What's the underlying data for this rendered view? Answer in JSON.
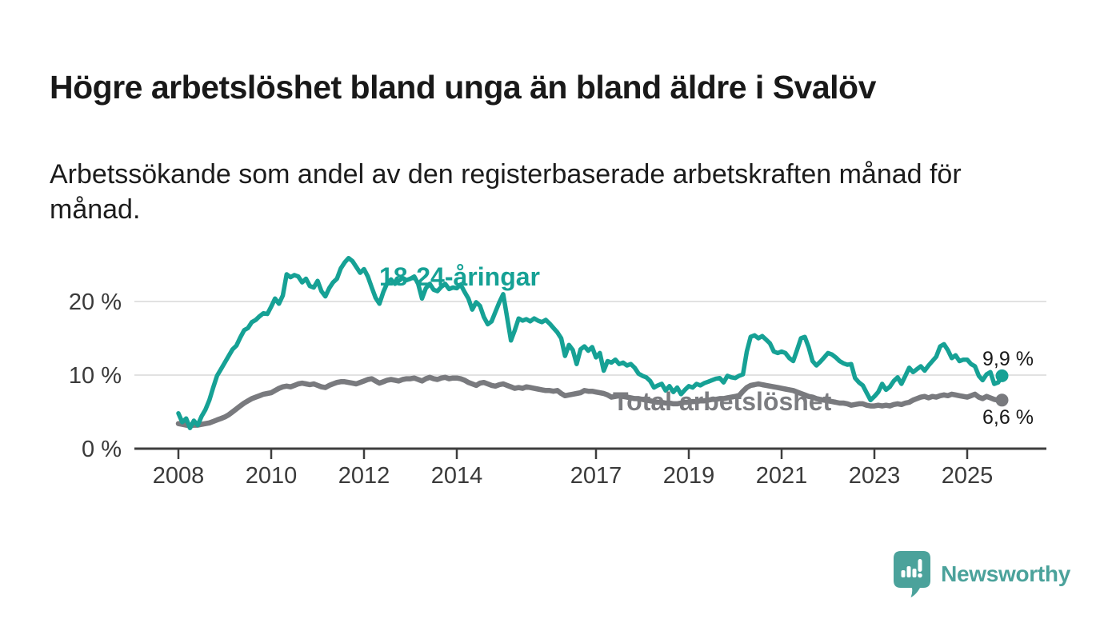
{
  "header": {
    "title": "Högre arbetslöshet bland unga än bland äldre i Svalöv",
    "subtitle": "Arbetssökande som andel av den registerbaserade arbetskraften månad för\nmånad."
  },
  "footer": {
    "brand": "Newsworthy",
    "logo_icon": "newsworthy-speech-bubble-bar-chart-icon"
  },
  "colors": {
    "accent_teal": "#16A195",
    "line_gray": "#797A7E",
    "label_gray": "#7B7C80",
    "text_dark": "#191919",
    "axis_text": "#3A3A3A",
    "axis_line": "#3E3E3E",
    "gridline": "#D9D9D9",
    "background": "#FFFFFF"
  },
  "chart_data": {
    "type": "line",
    "title": "Högre arbetslöshet bland unga än bland äldre i Svalöv",
    "subtitle": "Arbetssökande som andel av den registerbaserade arbetskraften månad för månad.",
    "x_unit": "month",
    "x_start": "2008-01",
    "x_end": "2025-10",
    "x_ticks": [
      2008,
      2010,
      2012,
      2014,
      2017,
      2019,
      2021,
      2023,
      2025
    ],
    "y_ticks": [
      {
        "value": 0,
        "label": "0 %"
      },
      {
        "value": 10,
        "label": "10 %"
      },
      {
        "value": 20,
        "label": "20 %"
      }
    ],
    "ylim": [
      0,
      27.5
    ],
    "grid": "horizontal",
    "legend": "inline-labels",
    "series": [
      {
        "name": "18-24-åringar",
        "color": "#16A195",
        "end_label": "9,9 %",
        "end_value": 9.9,
        "values": [
          4.8,
          3.6,
          4.1,
          2.8,
          3.8,
          3.2,
          4.4,
          5.3,
          6.6,
          8.3,
          9.9,
          10.8,
          11.7,
          12.6,
          13.5,
          14.0,
          15.1,
          16.1,
          16.4,
          17.2,
          17.5,
          18.0,
          18.4,
          18.3,
          19.3,
          20.4,
          19.7,
          20.8,
          23.7,
          23.3,
          23.6,
          23.4,
          22.6,
          23.1,
          22.1,
          21.9,
          22.8,
          21.4,
          20.7,
          21.8,
          22.6,
          23.1,
          24.5,
          25.3,
          25.9,
          25.5,
          24.7,
          23.9,
          24.4,
          23.4,
          21.9,
          20.5,
          19.7,
          21.3,
          22.5,
          23.0,
          22.4,
          22.8,
          23.2,
          22.9,
          23.1,
          23.4,
          22.4,
          20.4,
          21.8,
          22.4,
          21.6,
          21.4,
          22.0,
          22.4,
          21.7,
          21.9,
          21.8,
          22.3,
          21.3,
          20.4,
          18.9,
          19.9,
          19.4,
          17.9,
          16.9,
          17.3,
          18.6,
          19.9,
          21.0,
          17.9,
          14.7,
          16.1,
          17.7,
          17.4,
          17.6,
          17.3,
          17.7,
          17.4,
          17.2,
          17.5,
          17.0,
          16.4,
          15.8,
          15.0,
          12.6,
          14.1,
          13.4,
          11.5,
          13.5,
          13.9,
          13.3,
          13.8,
          12.4,
          13.0,
          10.6,
          11.9,
          11.7,
          12.1,
          11.5,
          11.7,
          11.3,
          11.5,
          11.0,
          10.2,
          9.9,
          9.7,
          9.2,
          8.3,
          8.6,
          8.8,
          7.9,
          8.5,
          7.7,
          8.3,
          7.4,
          8.0,
          8.5,
          8.3,
          8.8,
          8.6,
          8.9,
          9.1,
          9.3,
          9.5,
          9.6,
          9.0,
          9.9,
          9.7,
          9.6,
          9.9,
          10.1,
          13.2,
          15.2,
          15.4,
          15.0,
          15.3,
          14.8,
          14.3,
          13.2,
          13.0,
          13.2,
          13.0,
          12.3,
          11.9,
          13.4,
          15.0,
          15.2,
          13.8,
          11.9,
          11.3,
          11.8,
          12.4,
          13.0,
          12.8,
          12.4,
          11.9,
          11.6,
          11.4,
          11.5,
          9.6,
          9.0,
          8.6,
          7.6,
          6.6,
          7.1,
          7.7,
          8.8,
          8.0,
          8.4,
          9.2,
          9.7,
          8.8,
          9.9,
          11.0,
          10.4,
          10.8,
          11.2,
          10.6,
          11.3,
          11.9,
          12.5,
          13.9,
          14.2,
          13.4,
          12.3,
          12.7,
          11.9,
          12.1,
          12.1,
          11.5,
          11.2,
          9.9,
          9.3,
          10.1,
          10.4,
          8.8,
          9.0,
          9.9
        ]
      },
      {
        "name": "Total arbetslöshet",
        "color": "#797A7E",
        "end_label": "6,6 %",
        "end_value": 6.6,
        "values": [
          3.4,
          3.3,
          3.2,
          3.1,
          3.2,
          3.2,
          3.3,
          3.4,
          3.5,
          3.7,
          3.9,
          4.1,
          4.3,
          4.6,
          5.0,
          5.4,
          5.8,
          6.2,
          6.5,
          6.8,
          7.0,
          7.2,
          7.4,
          7.5,
          7.6,
          7.9,
          8.2,
          8.4,
          8.5,
          8.4,
          8.6,
          8.8,
          8.9,
          8.8,
          8.7,
          8.8,
          8.6,
          8.4,
          8.3,
          8.6,
          8.8,
          9.0,
          9.1,
          9.1,
          9.0,
          8.9,
          8.8,
          9.0,
          9.2,
          9.4,
          9.5,
          9.2,
          8.9,
          9.1,
          9.3,
          9.4,
          9.3,
          9.2,
          9.4,
          9.5,
          9.5,
          9.6,
          9.4,
          9.2,
          9.5,
          9.7,
          9.5,
          9.4,
          9.6,
          9.7,
          9.5,
          9.6,
          9.6,
          9.5,
          9.3,
          9.0,
          8.8,
          8.6,
          8.9,
          9.0,
          8.8,
          8.6,
          8.5,
          8.7,
          8.8,
          8.6,
          8.4,
          8.2,
          8.3,
          8.2,
          8.4,
          8.3,
          8.2,
          8.1,
          8.0,
          7.9,
          7.9,
          7.8,
          7.9,
          7.5,
          7.2,
          7.3,
          7.4,
          7.5,
          7.6,
          7.9,
          7.8,
          7.8,
          7.7,
          7.6,
          7.5,
          7.3,
          7.0,
          7.1,
          7.2,
          7.1,
          7.0,
          6.9,
          6.8,
          6.8,
          6.7,
          6.6,
          6.5,
          6.4,
          6.3,
          6.3,
          6.2,
          6.2,
          6.1,
          6.1,
          6.2,
          6.3,
          6.3,
          6.4,
          6.4,
          6.5,
          6.5,
          6.6,
          6.7,
          6.7,
          6.8,
          6.8,
          6.9,
          7.0,
          7.1,
          7.2,
          7.8,
          8.3,
          8.6,
          8.7,
          8.8,
          8.7,
          8.6,
          8.5,
          8.4,
          8.3,
          8.2,
          8.1,
          8.0,
          7.9,
          7.7,
          7.5,
          7.3,
          7.1,
          7.0,
          6.8,
          6.7,
          6.6,
          6.5,
          6.4,
          6.3,
          6.2,
          6.2,
          6.1,
          5.9,
          6.0,
          6.1,
          6.1,
          5.9,
          5.8,
          5.8,
          5.9,
          5.8,
          5.9,
          5.8,
          6.0,
          6.1,
          6.0,
          6.2,
          6.3,
          6.6,
          6.8,
          7.0,
          7.1,
          6.9,
          7.1,
          7.0,
          7.2,
          7.3,
          7.2,
          7.4,
          7.3,
          7.2,
          7.1,
          7.0,
          7.2,
          7.4,
          7.0,
          6.8,
          7.1,
          6.9,
          6.7,
          6.6,
          6.6
        ]
      }
    ]
  }
}
